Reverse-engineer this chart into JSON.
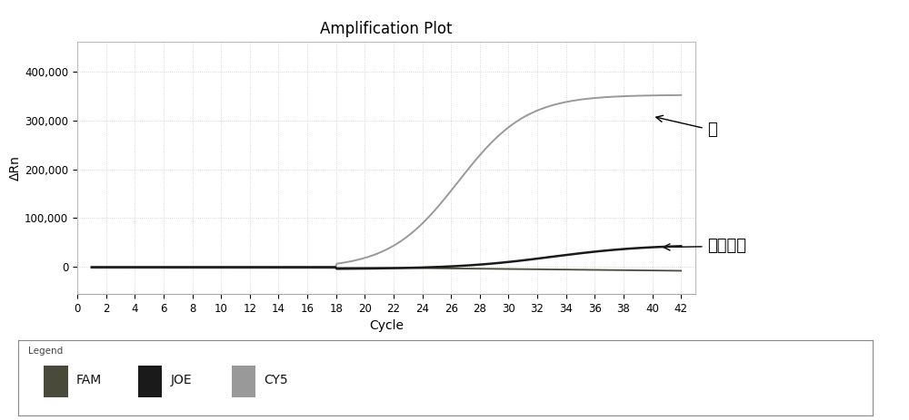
{
  "title": "Amplification Plot",
  "xlabel": "Cycle",
  "ylabel": "ΔRn",
  "xlim": [
    0,
    43
  ],
  "ylim": [
    -55000,
    460000
  ],
  "xticks": [
    0,
    2,
    4,
    6,
    8,
    10,
    12,
    14,
    16,
    18,
    20,
    22,
    24,
    26,
    28,
    30,
    32,
    34,
    36,
    38,
    40,
    42
  ],
  "yticks": [
    0,
    100000,
    200000,
    300000,
    400000
  ],
  "ytick_labels": [
    "0",
    "100,000",
    "200,000",
    "300,000",
    "400,000"
  ],
  "title_fontsize": 12,
  "axis_label_fontsize": 10,
  "tick_fontsize": 8.5,
  "annotation_fontsize": 13,
  "annotation1_text": "龟",
  "annotation2_text": "内标质控",
  "legend_labels": [
    "FAM",
    "JOE",
    "CY5"
  ],
  "fam_color": "#4a4a3a",
  "joe_color": "#1a1a1a",
  "cy5_color": "#999999",
  "background_color": "#ffffff",
  "plot_bg_color": "#ffffff",
  "grid_color": "#cccccc",
  "legend_border_color": "#888888"
}
